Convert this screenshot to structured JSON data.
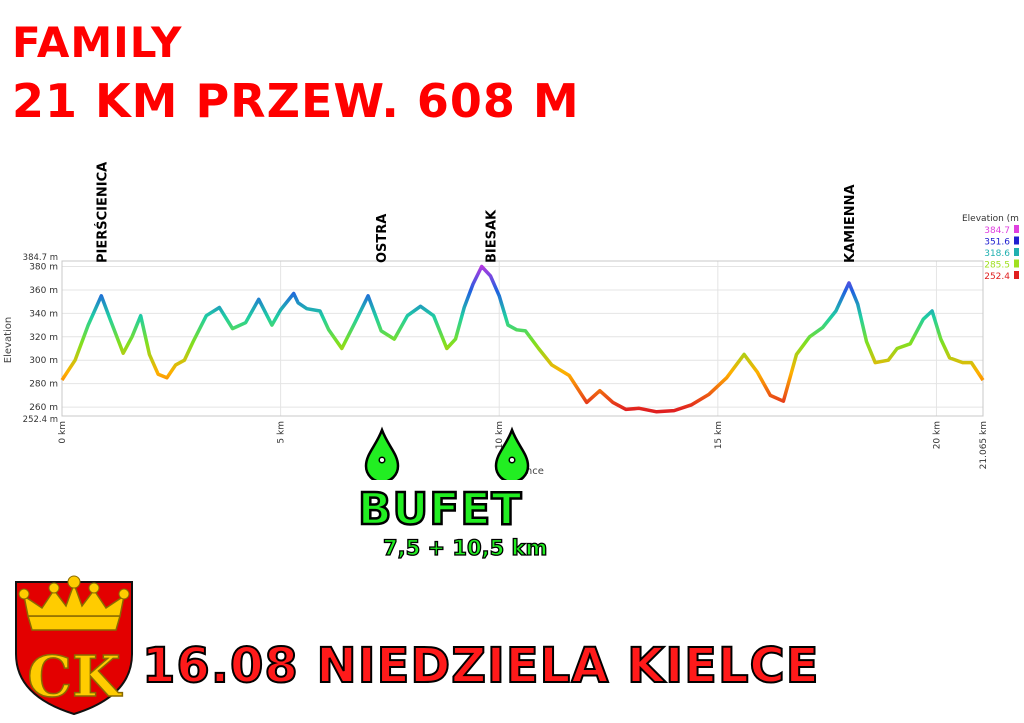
{
  "header": {
    "line1": "FAMILY",
    "line2": "21 KM PRZEW. 608 M"
  },
  "peaks": [
    "PIERŚCIENICA",
    "OSTRA",
    "BIESAK",
    "KAMIENNA"
  ],
  "bufet": {
    "label": "BUFET",
    "sub": "7,5 + 10,5 km",
    "icon": "water-drop-icon"
  },
  "footer": {
    "text": "16.08 NIEDZIELA KIELCE"
  },
  "crest": {
    "letters": "CK",
    "icon": "kielce-coat-of-arms-icon"
  },
  "colors": {
    "title": "#ff0000",
    "bufet": "#22ee22",
    "footer": "#ff1a1a"
  },
  "chart_data": {
    "type": "line",
    "xlabel": "Distance",
    "ylabel": "Elevation",
    "xlim": [
      0,
      21.065
    ],
    "ylim": [
      252.4,
      384.7
    ],
    "x_ticks": [
      "0 km",
      "5 km",
      "10 km",
      "15 km",
      "20 km",
      "21.065 km"
    ],
    "y_ticks": [
      "260 m",
      "280 m",
      "300 m",
      "320 m",
      "340 m",
      "360 m",
      "380 m"
    ],
    "y_extremes": [
      "384.7 m",
      "252.4 m"
    ],
    "legend": {
      "title": "Elevation (m",
      "entries": [
        "384.7",
        "351.6",
        "318.6",
        "285.5",
        "252.4"
      ],
      "colors": [
        "#e040e0",
        "#2020d0",
        "#20b0b0",
        "#a0e020",
        "#e02020"
      ]
    },
    "peak_markers": [
      {
        "label": "PIERŚCIENICA",
        "x": 0.9
      },
      {
        "label": "OSTRA",
        "x": 7.3
      },
      {
        "label": "BIESAK",
        "x": 9.8
      },
      {
        "label": "KAMIENNA",
        "x": 18.0
      }
    ],
    "bufet_km": [
      7.5,
      10.5
    ],
    "series": [
      {
        "x": [
          0,
          0.3,
          0.6,
          0.9,
          1.1,
          1.4,
          1.6,
          1.8,
          2.0,
          2.2,
          2.4,
          2.6,
          2.8,
          3.0,
          3.3,
          3.6,
          3.9,
          4.2,
          4.5,
          4.8,
          5.0,
          5.3,
          5.4,
          5.6,
          5.9,
          6.1,
          6.4,
          6.7,
          7.0,
          7.3,
          7.6,
          7.9,
          8.2,
          8.5,
          8.8,
          9.0,
          9.2,
          9.4,
          9.6,
          9.8,
          10.0,
          10.2,
          10.4,
          10.6,
          10.9,
          11.2,
          11.6,
          12.0,
          12.3,
          12.6,
          12.9,
          13.2,
          13.6,
          14.0,
          14.4,
          14.8,
          15.2,
          15.6,
          15.9,
          16.2,
          16.5,
          16.8,
          17.1,
          17.4,
          17.7,
          18.0,
          18.2,
          18.4,
          18.6,
          18.9,
          19.1,
          19.4,
          19.7,
          19.9,
          20.1,
          20.3,
          20.6,
          20.8,
          21.065
        ],
        "y": [
          283,
          300,
          330,
          355,
          335,
          306,
          320,
          338,
          305,
          288,
          285,
          296,
          300,
          316,
          338,
          345,
          327,
          332,
          352,
          330,
          343,
          357,
          349,
          344,
          342,
          326,
          310,
          332,
          355,
          325,
          318,
          338,
          346,
          338,
          310,
          318,
          345,
          365,
          380,
          372,
          355,
          330,
          326,
          325,
          310,
          296,
          287,
          264,
          274,
          264,
          258,
          259,
          256,
          257,
          262,
          271,
          285,
          305,
          290,
          270,
          265,
          305,
          320,
          328,
          342,
          366,
          348,
          316,
          298,
          300,
          310,
          314,
          335,
          342,
          318,
          302,
          298,
          298,
          283
        ]
      }
    ]
  }
}
